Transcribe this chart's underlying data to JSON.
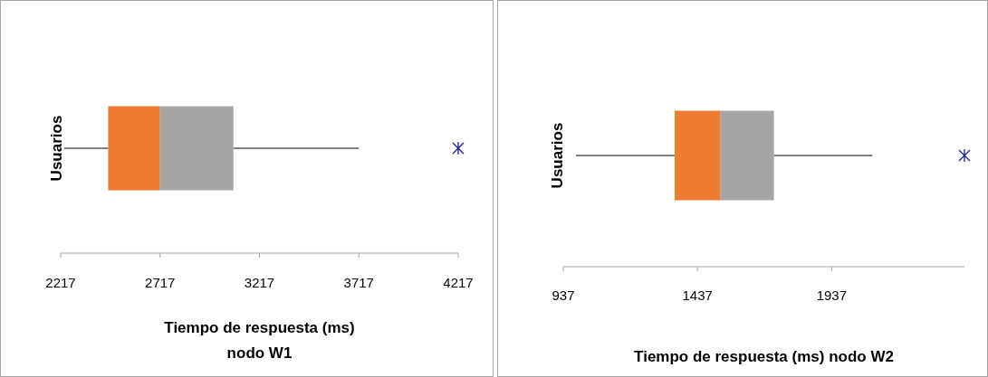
{
  "chart_data": [
    {
      "type": "box",
      "orientation": "horizontal",
      "xlabel": "Tiempo de respuesta (ms) nodo W1",
      "categories": [
        "Usuarios"
      ],
      "marker": "cross",
      "xlim": [
        2217,
        4217
      ],
      "xticks": [
        2217,
        2717,
        3217,
        3717,
        4217
      ],
      "series": [
        {
          "colors": [
            [
              "#ed7d31",
              "#a5a5a5"
            ]
          ],
          "boxes": [
            {
              "low": 2234,
              "q1": 2456,
              "median": 2717,
              "q3": 3086,
              "high": 3717
            }
          ]
        },
        {
          "type": "scatter",
          "color": "#1f1f99",
          "x": [
            "Usuarios"
          ],
          "values": [
            4217
          ]
        }
      ]
    },
    {
      "type": "box",
      "orientation": "horizontal",
      "xlabel": "Tiempo de respuesta (ms) nodo W2",
      "categories": [
        "Usuarios"
      ],
      "marker": "cross",
      "xlim": [
        937,
        2432
      ],
      "xticks": [
        937,
        1437,
        1937
      ],
      "series": [
        {
          "colors": [
            [
              "#ed7d31",
              "#a5a5a5"
            ]
          ],
          "boxes": [
            {
              "low": 984,
              "q1": 1352,
              "median": 1523,
              "q3": 1722,
              "high": 2089
            }
          ]
        },
        {
          "type": "scatter",
          "color": "#1f1f99",
          "x": [
            "Usuarios"
          ],
          "values": [
            2432
          ]
        }
      ]
    }
  ]
}
